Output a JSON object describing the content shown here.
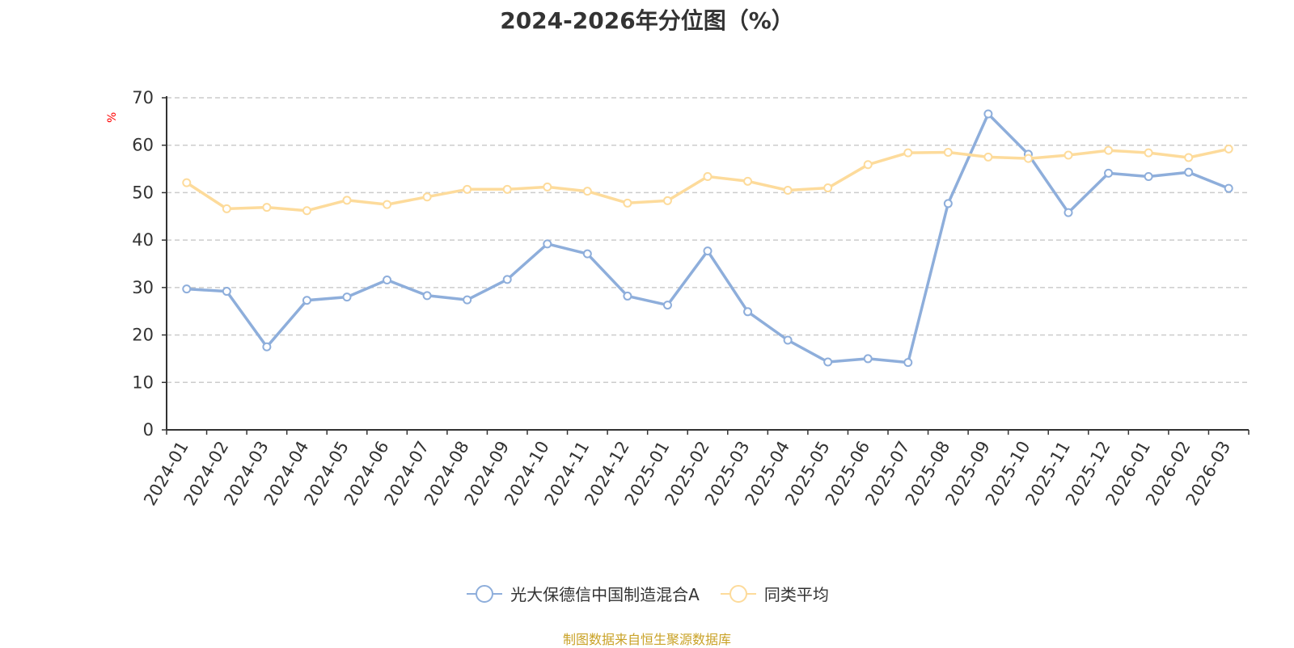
{
  "chart_data": {
    "type": "line",
    "title": "2024-2026年分位图（%）",
    "ylabel": "%",
    "ylim": [
      0,
      70
    ],
    "yticks": [
      0,
      10,
      20,
      30,
      40,
      50,
      60,
      70
    ],
    "grid": true,
    "legend_position": "bottom",
    "categories": [
      "2024-01",
      "2024-02",
      "2024-03",
      "2024-04",
      "2024-05",
      "2024-06",
      "2024-07",
      "2024-08",
      "2024-09",
      "2024-10",
      "2024-11",
      "2024-12",
      "2025-01",
      "2025-02",
      "2025-03",
      "2025-04",
      "2025-05",
      "2025-06",
      "2025-07",
      "2025-08",
      "2025-09",
      "2025-10",
      "2025-11",
      "2025-12",
      "2026-01",
      "2026-02",
      "2026-03"
    ],
    "series": [
      {
        "name": "光大保德信中国制造混合A",
        "color": "#8eaedb",
        "values": [
          29.7,
          29.2,
          17.5,
          27.3,
          28.0,
          31.6,
          28.3,
          27.4,
          31.7,
          39.2,
          37.1,
          28.2,
          26.3,
          37.7,
          24.9,
          18.9,
          14.3,
          15.0,
          14.2,
          47.7,
          66.6,
          58.1,
          45.8,
          54.1,
          53.4,
          54.3,
          50.9
        ]
      },
      {
        "name": "同类平均",
        "color": "#fddb9b",
        "values": [
          52.1,
          46.6,
          46.9,
          46.2,
          48.4,
          47.5,
          49.1,
          50.7,
          50.7,
          51.2,
          50.3,
          47.8,
          48.3,
          53.4,
          52.4,
          50.5,
          51.0,
          55.9,
          58.4,
          58.5,
          57.5,
          57.2,
          57.9,
          58.9,
          58.4,
          57.4,
          59.2
        ]
      }
    ]
  },
  "footer": {
    "source": "制图数据来自恒生聚源数据库"
  }
}
